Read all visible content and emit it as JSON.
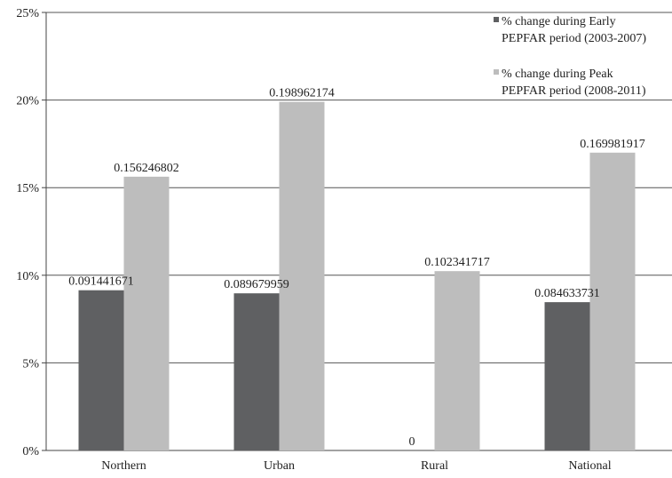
{
  "chart_data": {
    "type": "bar",
    "title": "",
    "xlabel": "",
    "ylabel": "",
    "categories": [
      "Northern",
      "Urban",
      "Rural",
      "National"
    ],
    "ylim": [
      0,
      0.25
    ],
    "yticks": [
      0,
      0.05,
      0.1,
      0.15,
      0.2,
      0.25
    ],
    "ytick_labels": [
      "0%",
      "5%",
      "10%",
      "15%",
      "20%",
      "25%"
    ],
    "grid": true,
    "legend_position": "top-right",
    "series": [
      {
        "name": "% change during Early PEPFAR period (2003-2007)",
        "legend_lines": [
          "% change during Early",
          "PEPFAR period (2003-2007)"
        ],
        "color": "#5f6062",
        "values": [
          0.091441671,
          0.089679959,
          0,
          0.084633731
        ],
        "labels": [
          "0.091441671",
          "0.089679959",
          "0",
          "0.084633731"
        ]
      },
      {
        "name": "% change during Peak PEPFAR period (2008-2011)",
        "legend_lines": [
          "% change during Peak",
          "PEPFAR period (2008-2011)"
        ],
        "color": "#bdbdbd",
        "values": [
          0.156246802,
          0.198962174,
          0.102341717,
          0.169981917
        ],
        "labels": [
          "0.156246802",
          "0.198962174",
          "0.102341717",
          "0.169981917"
        ]
      }
    ]
  }
}
